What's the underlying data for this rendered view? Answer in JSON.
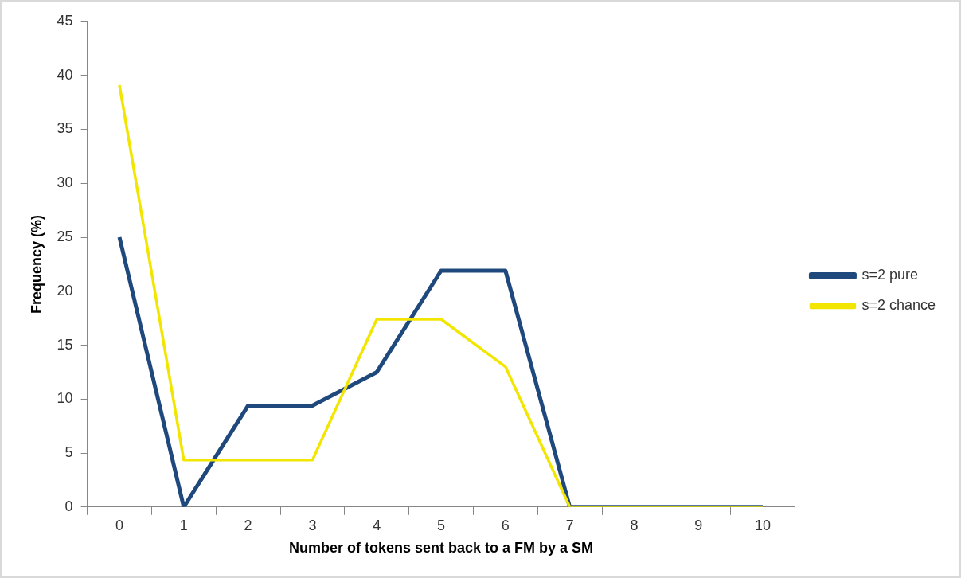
{
  "chart_data": {
    "type": "line",
    "xlabel": "Number of tokens sent back to a FM by a SM",
    "ylabel": "Frequency (%)",
    "categories": [
      "0",
      "1",
      "2",
      "3",
      "4",
      "5",
      "6",
      "7",
      "8",
      "9",
      "10"
    ],
    "series": [
      {
        "name": "s=2 pure",
        "color": "#1f497d",
        "values": [
          25,
          0,
          9.4,
          9.4,
          12.5,
          21.9,
          21.9,
          0,
          0,
          0,
          0
        ]
      },
      {
        "name": "s=2 chance",
        "color": "#f2e600",
        "values": [
          39.1,
          4.35,
          4.35,
          4.35,
          17.4,
          17.4,
          13.0,
          0,
          0,
          0,
          0
        ]
      }
    ],
    "ylim": [
      0,
      45
    ],
    "yticks": [
      0,
      5,
      10,
      15,
      20,
      25,
      30,
      35,
      40,
      45
    ],
    "grid": false,
    "legend": "right",
    "marker": "none",
    "line_style": "solid"
  }
}
